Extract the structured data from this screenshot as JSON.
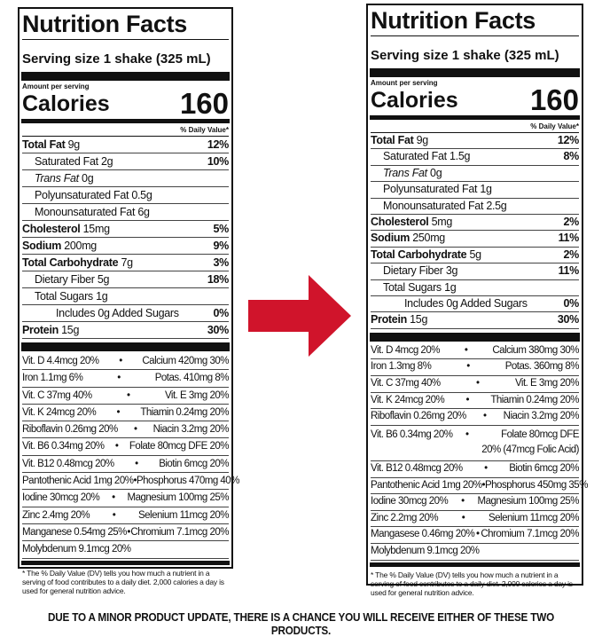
{
  "colors": {
    "arrow": "#d0142b"
  },
  "panels": [
    {
      "id": "left",
      "title": "Nutrition Facts",
      "serving": "Serving size  1 shake (325 mL)",
      "amount": "Amount per serving",
      "calories_label": "Calories",
      "calories": "160",
      "dv_header": "% Daily Value*",
      "nutrients": [
        {
          "name": "Total Fat",
          "amount": "9g",
          "dv": "12%",
          "bold": true,
          "indent": 0
        },
        {
          "name": "Saturated Fat",
          "amount": "2g",
          "dv": "10%",
          "indent": 1
        },
        {
          "name": "Trans Fat",
          "amount": "0g",
          "dv": "",
          "indent": 1,
          "italic": true
        },
        {
          "name": "Polyunsaturated Fat",
          "amount": "0.5g",
          "dv": "",
          "indent": 1
        },
        {
          "name": "Monounsaturated Fat",
          "amount": "6g",
          "dv": "",
          "indent": 1
        },
        {
          "name": "Cholesterol",
          "amount": "15mg",
          "dv": "5%",
          "bold": true,
          "indent": 0
        },
        {
          "name": "Sodium",
          "amount": "200mg",
          "dv": "9%",
          "bold": true,
          "indent": 0
        },
        {
          "name": "Total Carbohydrate",
          "amount": "7g",
          "dv": "3%",
          "bold": true,
          "indent": 0
        },
        {
          "name": "Dietary Fiber",
          "amount": "5g",
          "dv": "18%",
          "indent": 1
        },
        {
          "name": "Total Sugars",
          "amount": "1g",
          "dv": "",
          "indent": 1
        },
        {
          "name": "Includes 0g Added Sugars",
          "amount": "",
          "dv": "0%",
          "indent": 2
        },
        {
          "name": "Protein",
          "amount": "15g",
          "dv": "30%",
          "bold": true,
          "indent": 0
        }
      ],
      "vitamins": [
        [
          "Vit. D 4.4mcg 20%",
          "Calcium 420mg 30%"
        ],
        [
          "Iron 1.1mg 6%",
          "Potas. 410mg 8%"
        ],
        [
          "Vit. C 37mg 40%",
          "Vit. E 3mg 20%"
        ],
        [
          "Vit. K 24mcg 20%",
          "Thiamin 0.24mg 20%"
        ],
        [
          "Riboflavin 0.26mg 20%",
          "Niacin 3.2mg 20%"
        ],
        [
          "Vit. B6 0.34mg 20%",
          "Folate 80mcg DFE 20%"
        ],
        [
          "Vit. B12 0.48mcg 20%",
          "Biotin 6mcg 20%"
        ],
        [
          "Pantothenic Acid 1mg 20%",
          "Phosphorus 470mg 40%"
        ],
        [
          "Iodine 30mcg 20%",
          "Magnesium 100mg 25%"
        ],
        [
          "Zinc 2.4mg 20%",
          "Selenium 11mcg 20%"
        ],
        [
          "Manganese 0.54mg 25%",
          "Chromium 7.1mcg 20%"
        ],
        [
          "Molybdenum 9.1mcg 20%",
          ""
        ]
      ],
      "footnote": "* The % Daily Value (DV) tells you how much a nutrient in a serving of food contributes to a daily diet. 2,000 calories a day is used for general nutrition advice."
    },
    {
      "id": "right",
      "title": "Nutrition Facts",
      "serving": "Serving size  1 shake (325 mL)",
      "amount": "Amount per serving",
      "calories_label": "Calories",
      "calories": "160",
      "dv_header": "% Daily Value*",
      "nutrients": [
        {
          "name": "Total Fat",
          "amount": "9g",
          "dv": "12%",
          "bold": true,
          "indent": 0
        },
        {
          "name": "Saturated Fat",
          "amount": "1.5g",
          "dv": "8%",
          "indent": 1
        },
        {
          "name": "Trans Fat",
          "amount": "0g",
          "dv": "",
          "indent": 1,
          "italic": true
        },
        {
          "name": "Polyunsaturated Fat",
          "amount": "1g",
          "dv": "",
          "indent": 1
        },
        {
          "name": "Monounsaturated Fat",
          "amount": "2.5g",
          "dv": "",
          "indent": 1
        },
        {
          "name": "Cholesterol",
          "amount": "5mg",
          "dv": "2%",
          "bold": true,
          "indent": 0
        },
        {
          "name": "Sodium",
          "amount": "250mg",
          "dv": "11%",
          "bold": true,
          "indent": 0
        },
        {
          "name": "Total Carbohydrate",
          "amount": "5g",
          "dv": "2%",
          "bold": true,
          "indent": 0
        },
        {
          "name": "Dietary Fiber",
          "amount": "3g",
          "dv": "11%",
          "indent": 1
        },
        {
          "name": "Total Sugars",
          "amount": "1g",
          "dv": "",
          "indent": 1
        },
        {
          "name": "Includes 0g Added Sugars",
          "amount": "",
          "dv": "0%",
          "indent": 2
        },
        {
          "name": "Protein",
          "amount": "15g",
          "dv": "30%",
          "bold": true,
          "indent": 0
        }
      ],
      "vitamins": [
        [
          "Vit. D 4mcg 20%",
          "Calcium 380mg 30%"
        ],
        [
          "Iron 1.3mg 8%",
          "Potas. 360mg 8%"
        ],
        [
          "Vit. C 37mg 40%",
          "Vit. E 3mg 20%"
        ],
        [
          "Vit. K 24mcg 20%",
          "Thiamin 0.24mg 20%"
        ],
        [
          "Riboflavin 0.26mg 20%",
          "Niacin 3.2mg 20%"
        ],
        [
          "Vit. B6 0.34mg 20%",
          "Folate 80mcg DFE 20% (47mcg Folic Acid)"
        ],
        [
          "Vit. B12 0.48mcg 20%",
          "Biotin 6mcg 20%"
        ],
        [
          "Pantothenic Acid 1mg 20%",
          "Phosphorus 450mg 35%"
        ],
        [
          "Iodine 30mcg 20%",
          "Magnesium 100mg 25%"
        ],
        [
          "Zinc 2.2mg 20%",
          "Selenium 11mcg 20%"
        ],
        [
          "Mangasese 0.46mg 20%",
          "Chromium 7.1mcg 20%"
        ],
        [
          "Molybdenum 9.1mcg 20%",
          ""
        ]
      ],
      "footnote": "* The % Daily Value (DV) tells you how much a nutrient in a serving of food contributes to a daily diet. 2,000 calories a day is used for general nutrition advice."
    }
  ],
  "notice": "DUE TO A MINOR PRODUCT UPDATE, THERE IS A CHANCE YOU WILL RECEIVE EITHER OF THESE TWO PRODUCTS."
}
